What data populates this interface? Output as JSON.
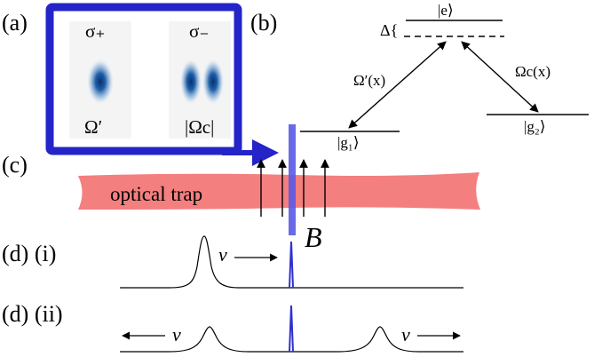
{
  "labels": {
    "a": "(a)",
    "b": "(b)",
    "c": "(c)",
    "d_i": "(d) (i)",
    "d_ii": "(d) (ii)"
  },
  "panel_a": {
    "sigma_plus": "σ₊",
    "sigma_minus": "σ₋",
    "omega_prime": "Ω′",
    "omega_c": "|Ωc|",
    "frame_color": "#2424c8"
  },
  "panel_b": {
    "level_e": "|e⟩",
    "level_g1": "|g₁⟩",
    "level_g2": "|g₂⟩",
    "delta": "Δ{",
    "coupling_left": "Ω′(x)",
    "coupling_right": "Ωc(x)"
  },
  "panel_c": {
    "trap_label": "optical trap",
    "field_label": "B",
    "trap_color": "#f47f7f",
    "beam_color": "#5a5ae6"
  },
  "panel_d": {
    "velocity_i": "v",
    "velocity_ii_left": "v",
    "velocity_ii_right": "v",
    "spike_color": "#3030d0"
  }
}
